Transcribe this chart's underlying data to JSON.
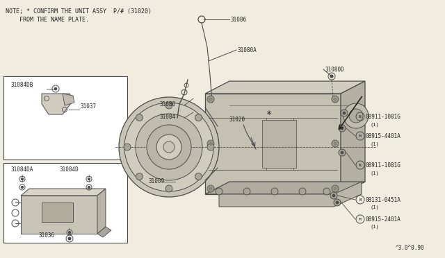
{
  "bg_color": "#f0ece0",
  "line_color": "#4a4a4a",
  "text_color": "#222222",
  "note_line1": "NOTE; * CONFIRM THE UNIT ASSY  P/# (31020)",
  "note_line2": "    FROM THE NAME PLATE.",
  "watermark": "^3.0^0.90",
  "bg_white": "#ffffff"
}
